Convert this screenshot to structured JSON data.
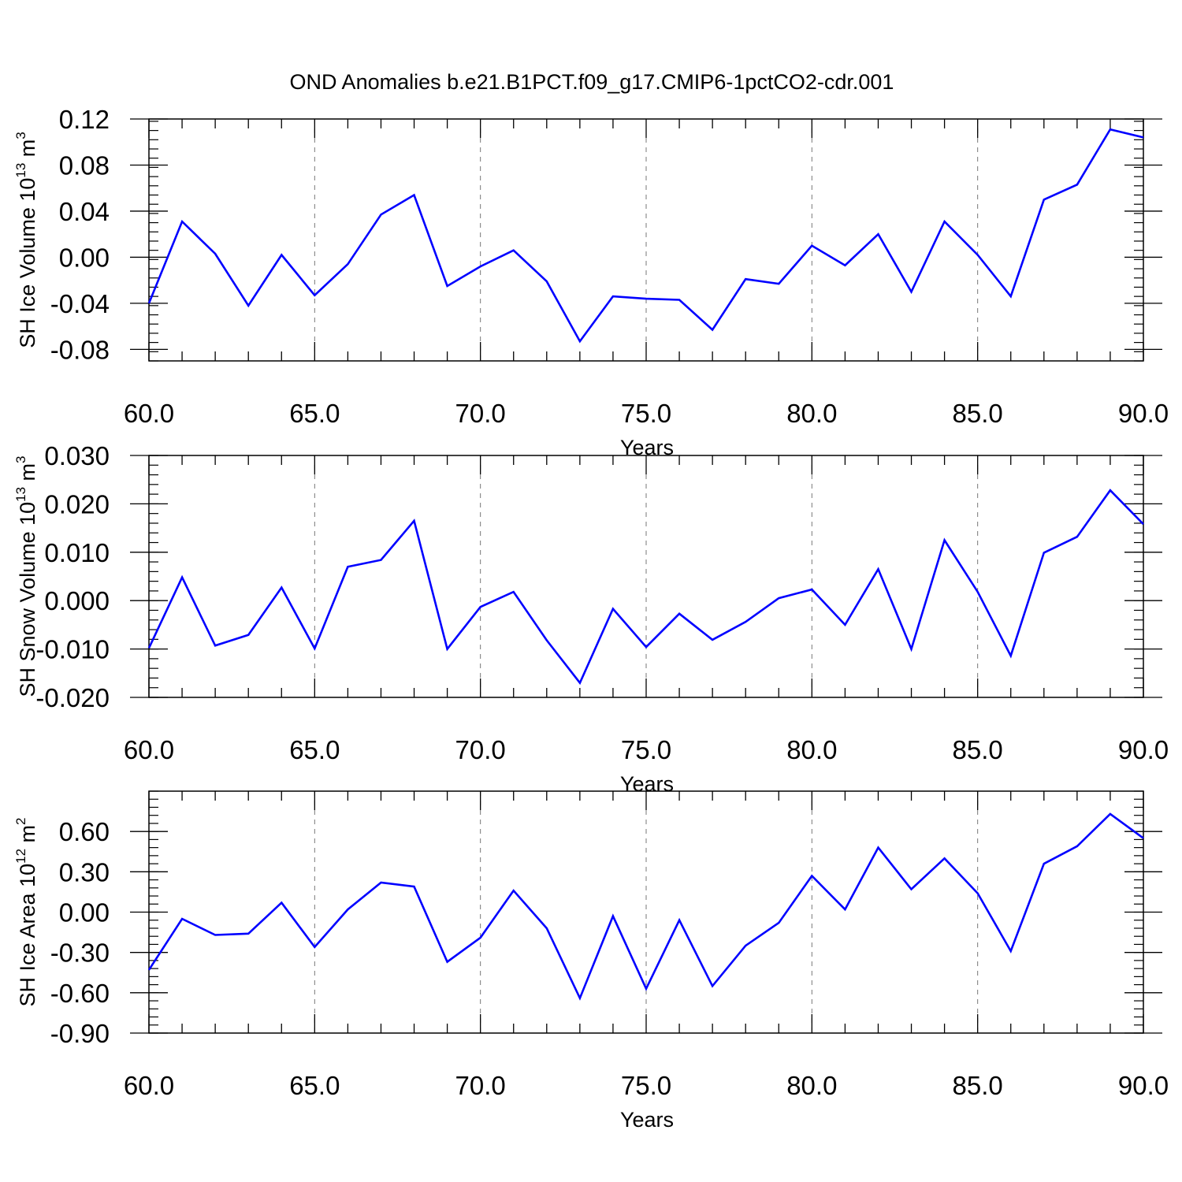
{
  "title": "OND Anomalies b.e21.B1PCT.f09_g17.CMIP6-1pctCO2-cdr.001",
  "chart_data": [
    {
      "type": "line",
      "ylabel": {
        "text": "SH Ice Volume 10",
        "exponent": "13",
        "unit": " m",
        "unit_exponent": "3"
      },
      "xlabel": "Years",
      "xlim": [
        60,
        90
      ],
      "ylim": [
        -0.09,
        0.12
      ],
      "xticks": [
        "60.0",
        "65.0",
        "70.0",
        "75.0",
        "80.0",
        "85.0",
        "90.0"
      ],
      "yticks": [
        "0.12",
        "0.08",
        "0.04",
        "0.00",
        "-0.04",
        "-0.08"
      ],
      "ytick_values": [
        0.12,
        0.08,
        0.04,
        0.0,
        -0.04,
        -0.08
      ],
      "grid": "vertical dashed at major x ticks",
      "line_color": "#0000ff",
      "series": [
        {
          "x": [
            60,
            61,
            62,
            63,
            64,
            65,
            66,
            67,
            68,
            69,
            70,
            71,
            72,
            73,
            74,
            75,
            76,
            77,
            78,
            79,
            80,
            81,
            82,
            83,
            84,
            85,
            86,
            87,
            88,
            89,
            90
          ],
          "values": [
            -0.04,
            0.031,
            0.003,
            -0.042,
            0.002,
            -0.033,
            -0.006,
            0.037,
            0.054,
            -0.025,
            -0.008,
            0.006,
            -0.021,
            -0.073,
            -0.034,
            -0.036,
            -0.037,
            -0.063,
            -0.019,
            -0.023,
            0.01,
            -0.007,
            0.02,
            -0.03,
            0.031,
            0.002,
            -0.034,
            0.05,
            0.063,
            0.111,
            0.104
          ]
        }
      ]
    },
    {
      "type": "line",
      "ylabel": {
        "text": "SH Snow Volume 10",
        "exponent": "13",
        "unit": " m",
        "unit_exponent": "3"
      },
      "xlabel": "Years",
      "xlim": [
        60,
        90
      ],
      "ylim": [
        -0.02,
        0.03
      ],
      "xticks": [
        "60.0",
        "65.0",
        "70.0",
        "75.0",
        "80.0",
        "85.0",
        "90.0"
      ],
      "yticks": [
        "0.030",
        "0.020",
        "0.010",
        "0.000",
        "-0.010",
        "-0.020"
      ],
      "ytick_values": [
        0.03,
        0.02,
        0.01,
        0.0,
        -0.01,
        -0.02
      ],
      "grid": "vertical dashed at major x ticks",
      "line_color": "#0000ff",
      "series": [
        {
          "x": [
            60,
            61,
            62,
            63,
            64,
            65,
            66,
            67,
            68,
            69,
            70,
            71,
            72,
            73,
            74,
            75,
            76,
            77,
            78,
            79,
            80,
            81,
            82,
            83,
            84,
            85,
            86,
            87,
            88,
            89,
            90
          ],
          "values": [
            -0.0098,
            0.0048,
            -0.0093,
            -0.0071,
            0.0027,
            -0.0099,
            0.007,
            0.0084,
            0.0165,
            -0.01,
            -0.0013,
            0.0018,
            -0.0082,
            -0.017,
            -0.0017,
            -0.0096,
            -0.0027,
            -0.0081,
            -0.0044,
            0.0005,
            0.0023,
            -0.005,
            0.0065,
            -0.01,
            0.0125,
            0.0018,
            -0.0114,
            0.0099,
            0.0132,
            0.0228,
            0.0158
          ]
        }
      ]
    },
    {
      "type": "line",
      "ylabel": {
        "text": "SH Ice Area 10",
        "exponent": "12",
        "unit": " m",
        "unit_exponent": "2"
      },
      "xlabel": "Years",
      "xlim": [
        60,
        90
      ],
      "ylim": [
        -0.9,
        0.9
      ],
      "xticks": [
        "60.0",
        "65.0",
        "70.0",
        "75.0",
        "80.0",
        "85.0",
        "90.0"
      ],
      "yticks": [
        "0.60",
        "0.30",
        "0.00",
        "-0.30",
        "-0.60",
        "-0.90"
      ],
      "ytick_values": [
        0.6,
        0.3,
        0.0,
        -0.3,
        -0.6,
        -0.9
      ],
      "grid": "vertical dashed at major x ticks",
      "line_color": "#0000ff",
      "series": [
        {
          "x": [
            60,
            61,
            62,
            63,
            64,
            65,
            66,
            67,
            68,
            69,
            70,
            71,
            72,
            73,
            74,
            75,
            76,
            77,
            78,
            79,
            80,
            81,
            82,
            83,
            84,
            85,
            86,
            87,
            88,
            89,
            90
          ],
          "values": [
            -0.43,
            -0.05,
            -0.17,
            -0.16,
            0.07,
            -0.26,
            0.02,
            0.22,
            0.19,
            -0.37,
            -0.19,
            0.16,
            -0.12,
            -0.64,
            -0.03,
            -0.57,
            -0.06,
            -0.55,
            -0.25,
            -0.08,
            0.27,
            0.02,
            0.48,
            0.17,
            0.4,
            0.14,
            -0.29,
            0.36,
            0.49,
            0.73,
            0.55
          ]
        }
      ]
    }
  ]
}
